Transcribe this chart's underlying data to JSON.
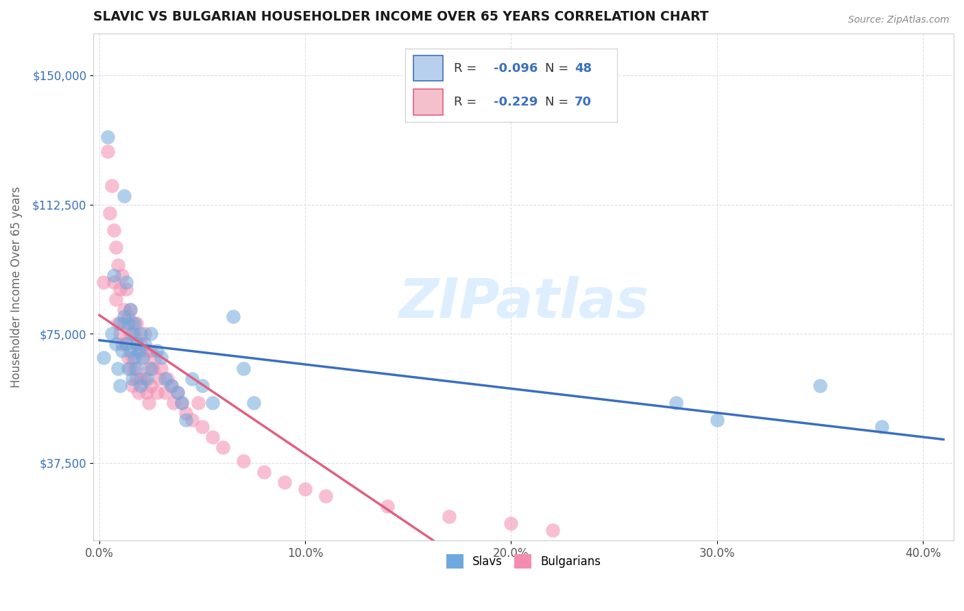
{
  "title": "SLAVIC VS BULGARIAN HOUSEHOLDER INCOME OVER 65 YEARS CORRELATION CHART",
  "source_text": "Source: ZipAtlas.com",
  "xlabel_tick_vals": [
    0.0,
    0.1,
    0.2,
    0.3,
    0.4
  ],
  "xlabel_ticks": [
    "0.0%",
    "10.0%",
    "20.0%",
    "30.0%",
    "40.0%"
  ],
  "ylabel_tick_vals": [
    37500,
    75000,
    112500,
    150000
  ],
  "ylabel_label": "Householder Income Over 65 years",
  "xlim": [
    -0.003,
    0.415
  ],
  "ylim": [
    15000,
    162000
  ],
  "slavs_color": "#6fa8dc",
  "bulgarians_color": "#f48cb0",
  "slavs_line_color": "#3a6fbf",
  "bulgarians_line_color": "#e06080",
  "dashed_line_color": "#d0a0b0",
  "watermark": "ZIPatlas",
  "watermark_color": "#ddeeff",
  "slavs_r": "-0.096",
  "slavs_n": "48",
  "bulgarians_r": "-0.229",
  "bulgarians_n": "70",
  "slavs_x": [
    0.002,
    0.004,
    0.006,
    0.007,
    0.008,
    0.009,
    0.01,
    0.01,
    0.011,
    0.012,
    0.012,
    0.013,
    0.013,
    0.014,
    0.014,
    0.015,
    0.015,
    0.016,
    0.016,
    0.017,
    0.017,
    0.018,
    0.018,
    0.019,
    0.02,
    0.02,
    0.021,
    0.022,
    0.023,
    0.025,
    0.025,
    0.028,
    0.03,
    0.032,
    0.035,
    0.038,
    0.04,
    0.042,
    0.045,
    0.05,
    0.055,
    0.065,
    0.07,
    0.075,
    0.28,
    0.3,
    0.35,
    0.38
  ],
  "slavs_y": [
    68000,
    132000,
    75000,
    92000,
    72000,
    65000,
    78000,
    60000,
    70000,
    115000,
    80000,
    90000,
    72000,
    78000,
    65000,
    82000,
    70000,
    75000,
    62000,
    78000,
    68000,
    72000,
    65000,
    70000,
    75000,
    60000,
    68000,
    72000,
    62000,
    75000,
    65000,
    70000,
    68000,
    62000,
    60000,
    58000,
    55000,
    50000,
    62000,
    60000,
    55000,
    80000,
    65000,
    55000,
    55000,
    50000,
    60000,
    48000
  ],
  "bulgarians_x": [
    0.002,
    0.004,
    0.005,
    0.006,
    0.007,
    0.007,
    0.008,
    0.008,
    0.009,
    0.009,
    0.01,
    0.01,
    0.011,
    0.011,
    0.012,
    0.012,
    0.013,
    0.013,
    0.014,
    0.014,
    0.015,
    0.015,
    0.015,
    0.016,
    0.016,
    0.016,
    0.017,
    0.017,
    0.018,
    0.018,
    0.018,
    0.019,
    0.019,
    0.02,
    0.02,
    0.021,
    0.022,
    0.022,
    0.023,
    0.023,
    0.024,
    0.024,
    0.025,
    0.025,
    0.026,
    0.027,
    0.028,
    0.029,
    0.03,
    0.032,
    0.033,
    0.035,
    0.036,
    0.038,
    0.04,
    0.042,
    0.045,
    0.048,
    0.05,
    0.055,
    0.06,
    0.07,
    0.08,
    0.09,
    0.1,
    0.11,
    0.14,
    0.17,
    0.2,
    0.22
  ],
  "bulgarians_y": [
    90000,
    128000,
    110000,
    118000,
    105000,
    90000,
    100000,
    85000,
    95000,
    78000,
    88000,
    75000,
    92000,
    72000,
    82000,
    78000,
    88000,
    72000,
    80000,
    68000,
    82000,
    75000,
    65000,
    78000,
    68000,
    60000,
    75000,
    65000,
    72000,
    62000,
    78000,
    70000,
    58000,
    72000,
    62000,
    68000,
    62000,
    75000,
    70000,
    58000,
    65000,
    55000,
    70000,
    60000,
    65000,
    68000,
    58000,
    62000,
    65000,
    58000,
    62000,
    60000,
    55000,
    58000,
    55000,
    52000,
    50000,
    55000,
    48000,
    45000,
    42000,
    38000,
    35000,
    32000,
    30000,
    28000,
    25000,
    22000,
    20000,
    18000
  ]
}
